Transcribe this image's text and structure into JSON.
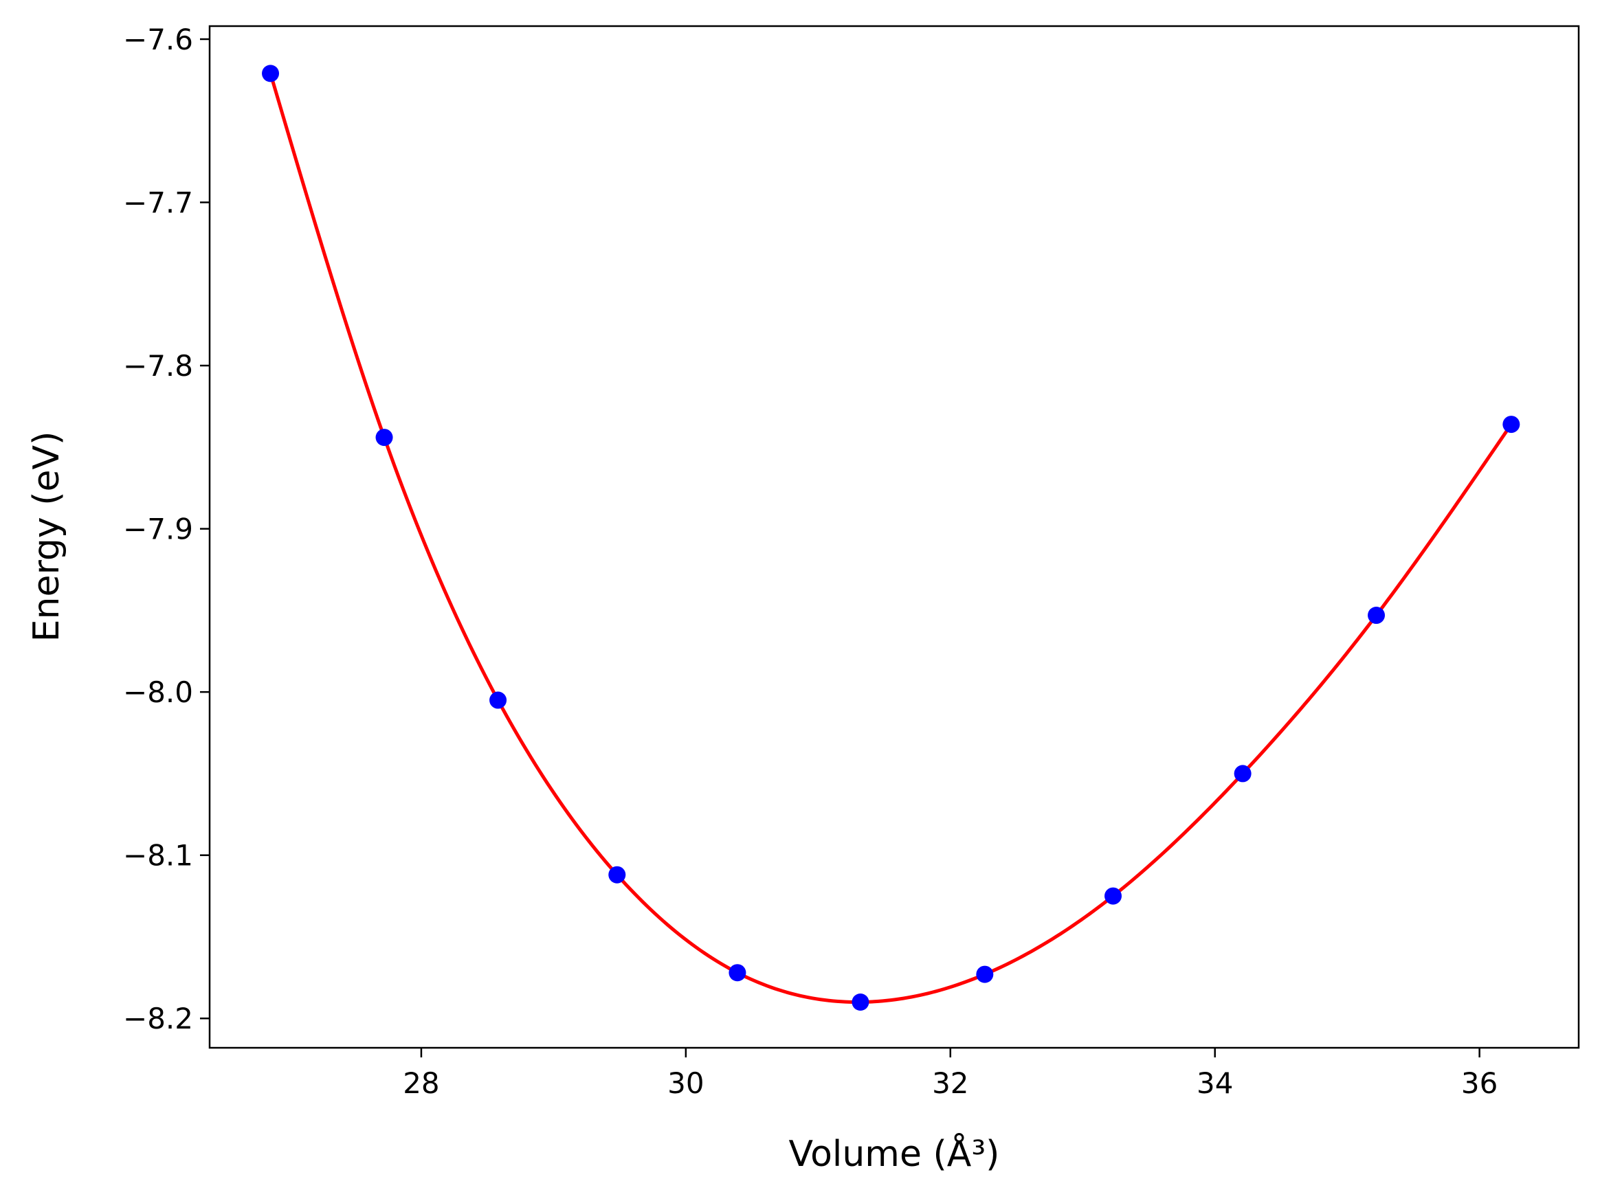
{
  "chart_data": {
    "type": "scatter",
    "xlabel": "Volume (Å³)",
    "ylabel": "Energy (eV)",
    "xlim": [
      26.4,
      36.75
    ],
    "ylim": [
      -8.218,
      -7.592
    ],
    "xticks": [
      28,
      30,
      32,
      34,
      36
    ],
    "yticks": [
      -7.6,
      -7.7,
      -7.8,
      -7.9,
      -8.0,
      -8.1,
      -8.2
    ],
    "xtick_labels": [
      "28",
      "30",
      "32",
      "34",
      "36"
    ],
    "ytick_labels": [
      "−7.6",
      "−7.7",
      "−7.8",
      "−7.9",
      "−8.0",
      "−8.1",
      "−8.2"
    ],
    "grid": false,
    "legend": "none",
    "series": [
      {
        "kind": "points",
        "color": "#0000ff",
        "x": [
          26.86,
          27.72,
          28.58,
          29.48,
          30.39,
          31.32,
          32.26,
          33.23,
          34.21,
          35.22,
          36.24
        ],
        "y": [
          -7.621,
          -7.844,
          -8.005,
          -8.112,
          -8.172,
          -8.19,
          -8.173,
          -8.125,
          -8.05,
          -7.953,
          -7.836
        ]
      },
      {
        "kind": "fit-curve",
        "color": "#ff0000",
        "x": [
          26.86,
          27.72,
          28.58,
          29.48,
          30.39,
          31.32,
          32.26,
          33.23,
          34.21,
          35.22,
          36.24
        ],
        "y": [
          -7.621,
          -7.844,
          -8.005,
          -8.112,
          -8.172,
          -8.19,
          -8.173,
          -8.125,
          -8.05,
          -7.953,
          -7.836
        ]
      }
    ]
  }
}
